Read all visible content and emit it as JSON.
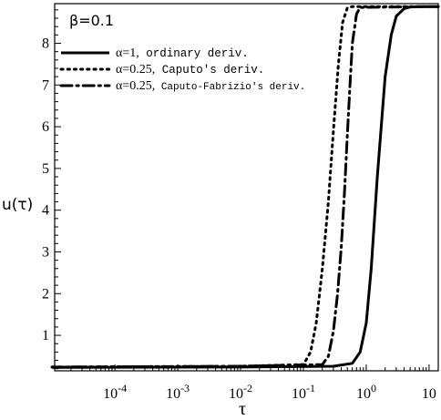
{
  "chart_data": {
    "type": "line",
    "annotation": "β=0.1",
    "xlabel": "τ",
    "ylabel": "u(τ)",
    "x_scale": "log",
    "xlim": [
      1.1e-05,
      14
    ],
    "ylim": [
      0.15,
      8.95
    ],
    "grid": false,
    "legend_position": "top-left",
    "x_ticks": [
      {
        "value": 0.0001,
        "base": "10",
        "exp": "-4"
      },
      {
        "value": 0.001,
        "base": "10",
        "exp": "-3"
      },
      {
        "value": 0.01,
        "base": "10",
        "exp": "-2"
      },
      {
        "value": 0.1,
        "base": "10",
        "exp": "-1"
      },
      {
        "value": 1,
        "base": "10",
        "exp": "0"
      },
      {
        "value": 10,
        "base": "10",
        "exp": ""
      }
    ],
    "y_ticks": [
      1,
      2,
      3,
      4,
      5,
      6,
      7,
      8
    ],
    "series": [
      {
        "name": "α=1, ordinary deriv.",
        "name_parts": {
          "param": "α=1,",
          "desc": " ordinary deriv."
        },
        "style": "solid",
        "x": [
          1e-05,
          0.01,
          0.3,
          0.6,
          0.8,
          1.0,
          1.2,
          1.5,
          2.0,
          2.5,
          3.0,
          4.0,
          5.0,
          7.0,
          14
        ],
        "y": [
          0.23,
          0.24,
          0.26,
          0.33,
          0.6,
          1.3,
          2.6,
          4.8,
          7.2,
          8.2,
          8.65,
          8.83,
          8.87,
          8.88,
          8.88
        ]
      },
      {
        "name": "α=0.25, Caputo's deriv.",
        "name_parts": {
          "param": "α=0.25,",
          "desc": " Caputo's deriv."
        },
        "style": "dotted",
        "x": [
          1e-05,
          0.01,
          0.1,
          0.13,
          0.16,
          0.2,
          0.25,
          0.3,
          0.36,
          0.42,
          0.5,
          0.6,
          1.0,
          14
        ],
        "y": [
          0.24,
          0.26,
          0.3,
          0.6,
          1.3,
          2.6,
          4.2,
          5.9,
          7.5,
          8.5,
          8.85,
          8.88,
          8.88,
          8.88
        ]
      },
      {
        "name": "α=0.25, Caputo-Fabrizio's deriv.",
        "name_parts": {
          "param": "α=0.25,",
          "desc": " Caputo-Fabrizio's deriv."
        },
        "style": "dashdot",
        "x": [
          1e-05,
          0.01,
          0.2,
          0.25,
          0.3,
          0.35,
          0.4,
          0.45,
          0.5,
          0.55,
          0.6,
          0.7,
          0.8,
          14
        ],
        "y": [
          0.24,
          0.26,
          0.3,
          0.5,
          1.1,
          2.0,
          3.1,
          4.4,
          5.8,
          7.0,
          8.0,
          8.7,
          8.86,
          8.88
        ]
      }
    ]
  }
}
